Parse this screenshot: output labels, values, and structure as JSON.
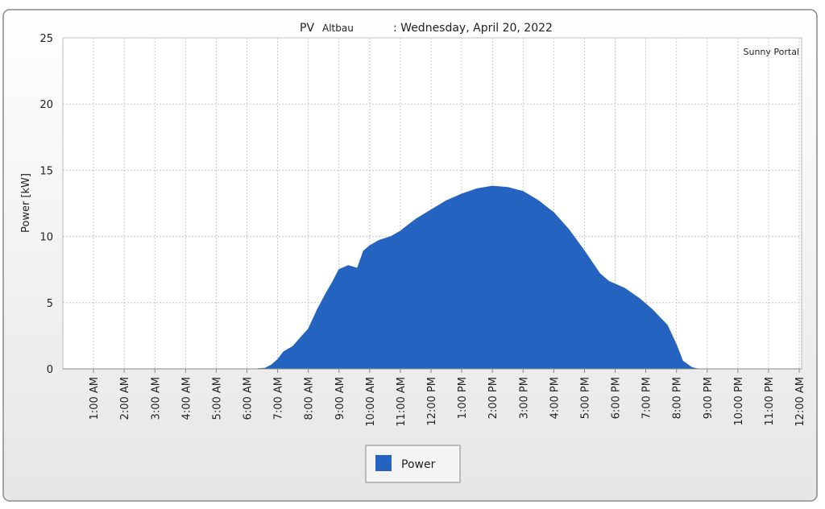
{
  "chart_data": {
    "type": "area",
    "title_parts": [
      "PV",
      "Altbau",
      ": Wednesday, April 20, 2022"
    ],
    "watermark": "Sunny Portal",
    "ylabel": "Power [kW]",
    "x": [
      6.3,
      6.6,
      6.8,
      7.0,
      7.2,
      7.5,
      7.8,
      8.0,
      8.3,
      8.6,
      8.8,
      9.0,
      9.3,
      9.6,
      9.8,
      10.0,
      10.3,
      10.7,
      11.0,
      11.5,
      12.0,
      12.5,
      13.0,
      13.5,
      14.0,
      14.5,
      15.0,
      15.5,
      16.0,
      16.5,
      17.0,
      17.5,
      17.8,
      18.3,
      18.8,
      19.2,
      19.7,
      20.0,
      20.2,
      20.5,
      20.7
    ],
    "series": [
      {
        "name": "Power",
        "color": "#2563c0",
        "values": [
          0,
          0.05,
          0.3,
          0.7,
          1.3,
          1.7,
          2.5,
          3.0,
          4.5,
          5.8,
          6.6,
          7.5,
          7.8,
          7.6,
          8.9,
          9.3,
          9.7,
          10.0,
          10.4,
          11.3,
          12.0,
          12.7,
          13.2,
          13.6,
          13.8,
          13.7,
          13.4,
          12.7,
          11.8,
          10.5,
          8.9,
          7.2,
          6.6,
          6.1,
          5.3,
          4.5,
          3.3,
          1.8,
          0.6,
          0.1,
          0
        ]
      }
    ],
    "xlim": [
      0,
      24
    ],
    "xticks": [
      {
        "value": 1,
        "label": "1:00 AM"
      },
      {
        "value": 2,
        "label": "2:00 AM"
      },
      {
        "value": 3,
        "label": "3:00 AM"
      },
      {
        "value": 4,
        "label": "4:00 AM"
      },
      {
        "value": 5,
        "label": "5:00 AM"
      },
      {
        "value": 6,
        "label": "6:00 AM"
      },
      {
        "value": 7,
        "label": "7:00 AM"
      },
      {
        "value": 8,
        "label": "8:00 AM"
      },
      {
        "value": 9,
        "label": "9:00 AM"
      },
      {
        "value": 10,
        "label": "10:00 AM"
      },
      {
        "value": 11,
        "label": "11:00 AM"
      },
      {
        "value": 12,
        "label": "12:00 PM"
      },
      {
        "value": 13,
        "label": "1:00 PM"
      },
      {
        "value": 14,
        "label": "2:00 PM"
      },
      {
        "value": 15,
        "label": "3:00 PM"
      },
      {
        "value": 16,
        "label": "4:00 PM"
      },
      {
        "value": 17,
        "label": "5:00 PM"
      },
      {
        "value": 18,
        "label": "6:00 PM"
      },
      {
        "value": 19,
        "label": "7:00 PM"
      },
      {
        "value": 20,
        "label": "8:00 PM"
      },
      {
        "value": 21,
        "label": "9:00 PM"
      },
      {
        "value": 22,
        "label": "10:00 PM"
      },
      {
        "value": 23,
        "label": "11:00 PM"
      },
      {
        "value": 24,
        "label": "12:00 AM"
      }
    ],
    "ylim": [
      0,
      25
    ],
    "yticks": [
      0,
      5,
      10,
      15,
      20,
      25
    ],
    "grid": true
  }
}
